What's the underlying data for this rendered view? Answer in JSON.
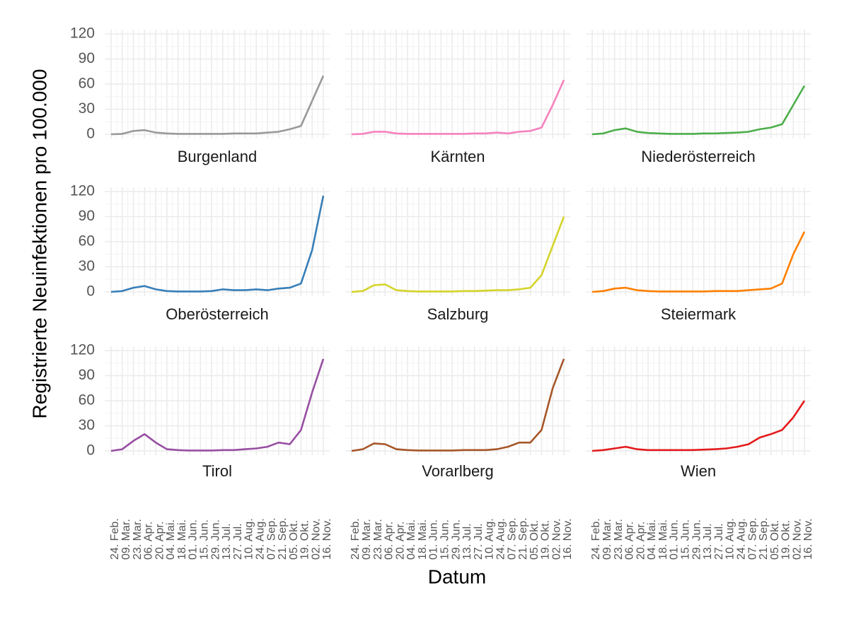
{
  "ylabel": "Registrierte Neuinfektionen pro 100.000",
  "xlabel": "Datum",
  "categories": [
    "24. Feb.",
    "09. Mar.",
    "23. Mar.",
    "06. Apr.",
    "20. Apr.",
    "04. Mai.",
    "18. Mai.",
    "01. Jun.",
    "15. Jun.",
    "29. Jun.",
    "13. Jul.",
    "27. Jul.",
    "10. Aug.",
    "24. Aug.",
    "07. Sep.",
    "21. Sep.",
    "05. Okt.",
    "19. Okt.",
    "02. Nov.",
    "16. Nov."
  ],
  "ylim": [
    0,
    120
  ],
  "yticks": [
    0,
    30,
    60,
    90,
    120
  ],
  "grid": true,
  "chart_data": [
    {
      "type": "line",
      "title": "Burgenland",
      "color": "#999999",
      "values": [
        0,
        0.5,
        4,
        5,
        2,
        1,
        0.5,
        0.5,
        0.5,
        0.5,
        0.5,
        1,
        1,
        1,
        2,
        3,
        6,
        10,
        40,
        70
      ]
    },
    {
      "type": "line",
      "title": "Kärnten",
      "color": "#f781bf",
      "values": [
        0,
        0.5,
        3,
        3,
        1,
        0.5,
        0.5,
        0.5,
        0.5,
        0.5,
        0.5,
        1,
        1,
        2,
        1,
        3,
        4,
        8,
        35,
        65
      ]
    },
    {
      "type": "line",
      "title": "Niederösterreich",
      "color": "#4daf4a",
      "values": [
        0,
        1,
        5,
        7,
        3,
        1.5,
        1,
        0.5,
        0.5,
        0.5,
        1,
        1,
        1.5,
        2,
        3,
        6,
        8,
        12,
        35,
        58
      ]
    },
    {
      "type": "line",
      "title": "Oberösterreich",
      "color": "#377eb8",
      "values": [
        0,
        1,
        5,
        7,
        3,
        1,
        0.5,
        0.5,
        0.5,
        1,
        3,
        2,
        2,
        3,
        2,
        4,
        5,
        10,
        50,
        115
      ]
    },
    {
      "type": "line",
      "title": "Salzburg",
      "color": "#d4d42a",
      "values": [
        0,
        1,
        8,
        9,
        2,
        1,
        0.5,
        0.5,
        0.5,
        0.5,
        1,
        1,
        1.5,
        2,
        2,
        3,
        5,
        20,
        55,
        90
      ]
    },
    {
      "type": "line",
      "title": "Steiermark",
      "color": "#ff7f00",
      "values": [
        0,
        1,
        4,
        5,
        2,
        1,
        0.5,
        0.5,
        0.5,
        0.5,
        0.5,
        1,
        1,
        1,
        2,
        3,
        4,
        10,
        45,
        72
      ]
    },
    {
      "type": "line",
      "title": "Tirol",
      "color": "#984ea3",
      "values": [
        0,
        2,
        12,
        20,
        10,
        2,
        1,
        0.5,
        0.5,
        0.5,
        1,
        1,
        2,
        3,
        5,
        10,
        8,
        25,
        70,
        110
      ]
    },
    {
      "type": "line",
      "title": "Vorarlberg",
      "color": "#a65628",
      "values": [
        0,
        2,
        9,
        8,
        2,
        1,
        0.5,
        0.5,
        0.5,
        0.5,
        1,
        1,
        1,
        2,
        5,
        10,
        10,
        25,
        75,
        110
      ]
    },
    {
      "type": "line",
      "title": "Wien",
      "color": "#e41a1c",
      "values": [
        0,
        1,
        3,
        5,
        2,
        1,
        1,
        1,
        1,
        1,
        1.5,
        2,
        3,
        5,
        8,
        16,
        20,
        25,
        40,
        60
      ]
    }
  ]
}
